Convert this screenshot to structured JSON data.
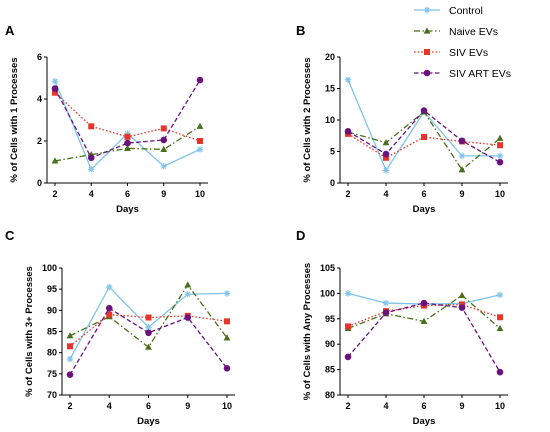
{
  "colors": {
    "Control": "#7fc4ea",
    "Naive EVs": "#4a6f1c",
    "SIV EVs": "#e8352b",
    "SIV ART EVs": "#6a137c"
  },
  "legend": [
    {
      "name": "Control",
      "marker": "star",
      "dash": "solid"
    },
    {
      "name": "Naive EVs",
      "marker": "triangle",
      "dash": "dashdot"
    },
    {
      "name": "SIV EVs",
      "marker": "square",
      "dash": "dotted"
    },
    {
      "name": "SIV ART EVs",
      "marker": "circle",
      "dash": "dashed"
    }
  ],
  "chart_data": [
    {
      "panel": "A",
      "type": "line",
      "x": [
        2,
        4,
        6,
        9,
        10
      ],
      "xlabel": "Days",
      "ylabel": "% of Cells with 1 Processes",
      "ylim": [
        0,
        6
      ],
      "yticks": [
        0,
        2,
        4,
        6
      ],
      "series": [
        {
          "name": "Control",
          "values": [
            4.85,
            0.65,
            2.35,
            0.8,
            1.6
          ]
        },
        {
          "name": "Naive EVs",
          "values": [
            1.05,
            1.35,
            1.65,
            1.6,
            2.7
          ]
        },
        {
          "name": "SIV EVs",
          "values": [
            4.3,
            2.7,
            2.2,
            2.6,
            2.0
          ]
        },
        {
          "name": "SIV ART EVs",
          "values": [
            4.5,
            1.2,
            1.9,
            2.05,
            4.9
          ]
        }
      ]
    },
    {
      "panel": "B",
      "type": "line",
      "x": [
        2,
        4,
        6,
        9,
        10
      ],
      "xlabel": "Days",
      "ylabel": "% of Cells with 2 Processes",
      "ylim": [
        0,
        20
      ],
      "yticks": [
        0,
        5,
        10,
        15,
        20
      ],
      "series": [
        {
          "name": "Control",
          "values": [
            16.4,
            2.0,
            11.3,
            4.3,
            4.3
          ]
        },
        {
          "name": "Naive EVs",
          "values": [
            8.1,
            6.4,
            11.3,
            2.1,
            7.1
          ]
        },
        {
          "name": "SIV EVs",
          "values": [
            7.8,
            4.0,
            7.3,
            6.6,
            6.0
          ]
        },
        {
          "name": "SIV ART EVs",
          "values": [
            8.2,
            4.6,
            11.5,
            6.7,
            3.3
          ]
        }
      ]
    },
    {
      "panel": "C",
      "type": "line",
      "x": [
        2,
        4,
        6,
        9,
        10
      ],
      "xlabel": "Days",
      "ylabel": "% of Cells with 3+ Processes",
      "ylim": [
        70,
        100
      ],
      "yticks": [
        70,
        75,
        80,
        85,
        90,
        95,
        100
      ],
      "series": [
        {
          "name": "Control",
          "values": [
            78.5,
            95.5,
            86.0,
            93.8,
            94.0
          ]
        },
        {
          "name": "Naive EVs",
          "values": [
            84.0,
            88.5,
            81.3,
            96.0,
            83.5
          ]
        },
        {
          "name": "SIV EVs",
          "values": [
            81.5,
            89.0,
            88.3,
            88.7,
            87.4
          ]
        },
        {
          "name": "SIV ART EVs",
          "values": [
            74.8,
            90.5,
            84.7,
            88.3,
            76.3
          ]
        }
      ]
    },
    {
      "panel": "D",
      "type": "line",
      "x": [
        2,
        4,
        6,
        9,
        10
      ],
      "xlabel": "Days",
      "ylabel": "% of Cells with Any Processes",
      "ylim": [
        80,
        105
      ],
      "yticks": [
        80,
        85,
        90,
        95,
        100,
        105
      ],
      "series": [
        {
          "name": "Control",
          "values": [
            100.0,
            98.1,
            97.9,
            98.0,
            99.7
          ]
        },
        {
          "name": "Naive EVs",
          "values": [
            93.1,
            96.0,
            94.5,
            99.6,
            93.1
          ]
        },
        {
          "name": "SIV EVs",
          "values": [
            93.5,
            96.5,
            97.6,
            97.8,
            95.3
          ]
        },
        {
          "name": "SIV ART EVs",
          "values": [
            87.5,
            96.2,
            98.1,
            97.2,
            84.5
          ]
        }
      ]
    }
  ]
}
